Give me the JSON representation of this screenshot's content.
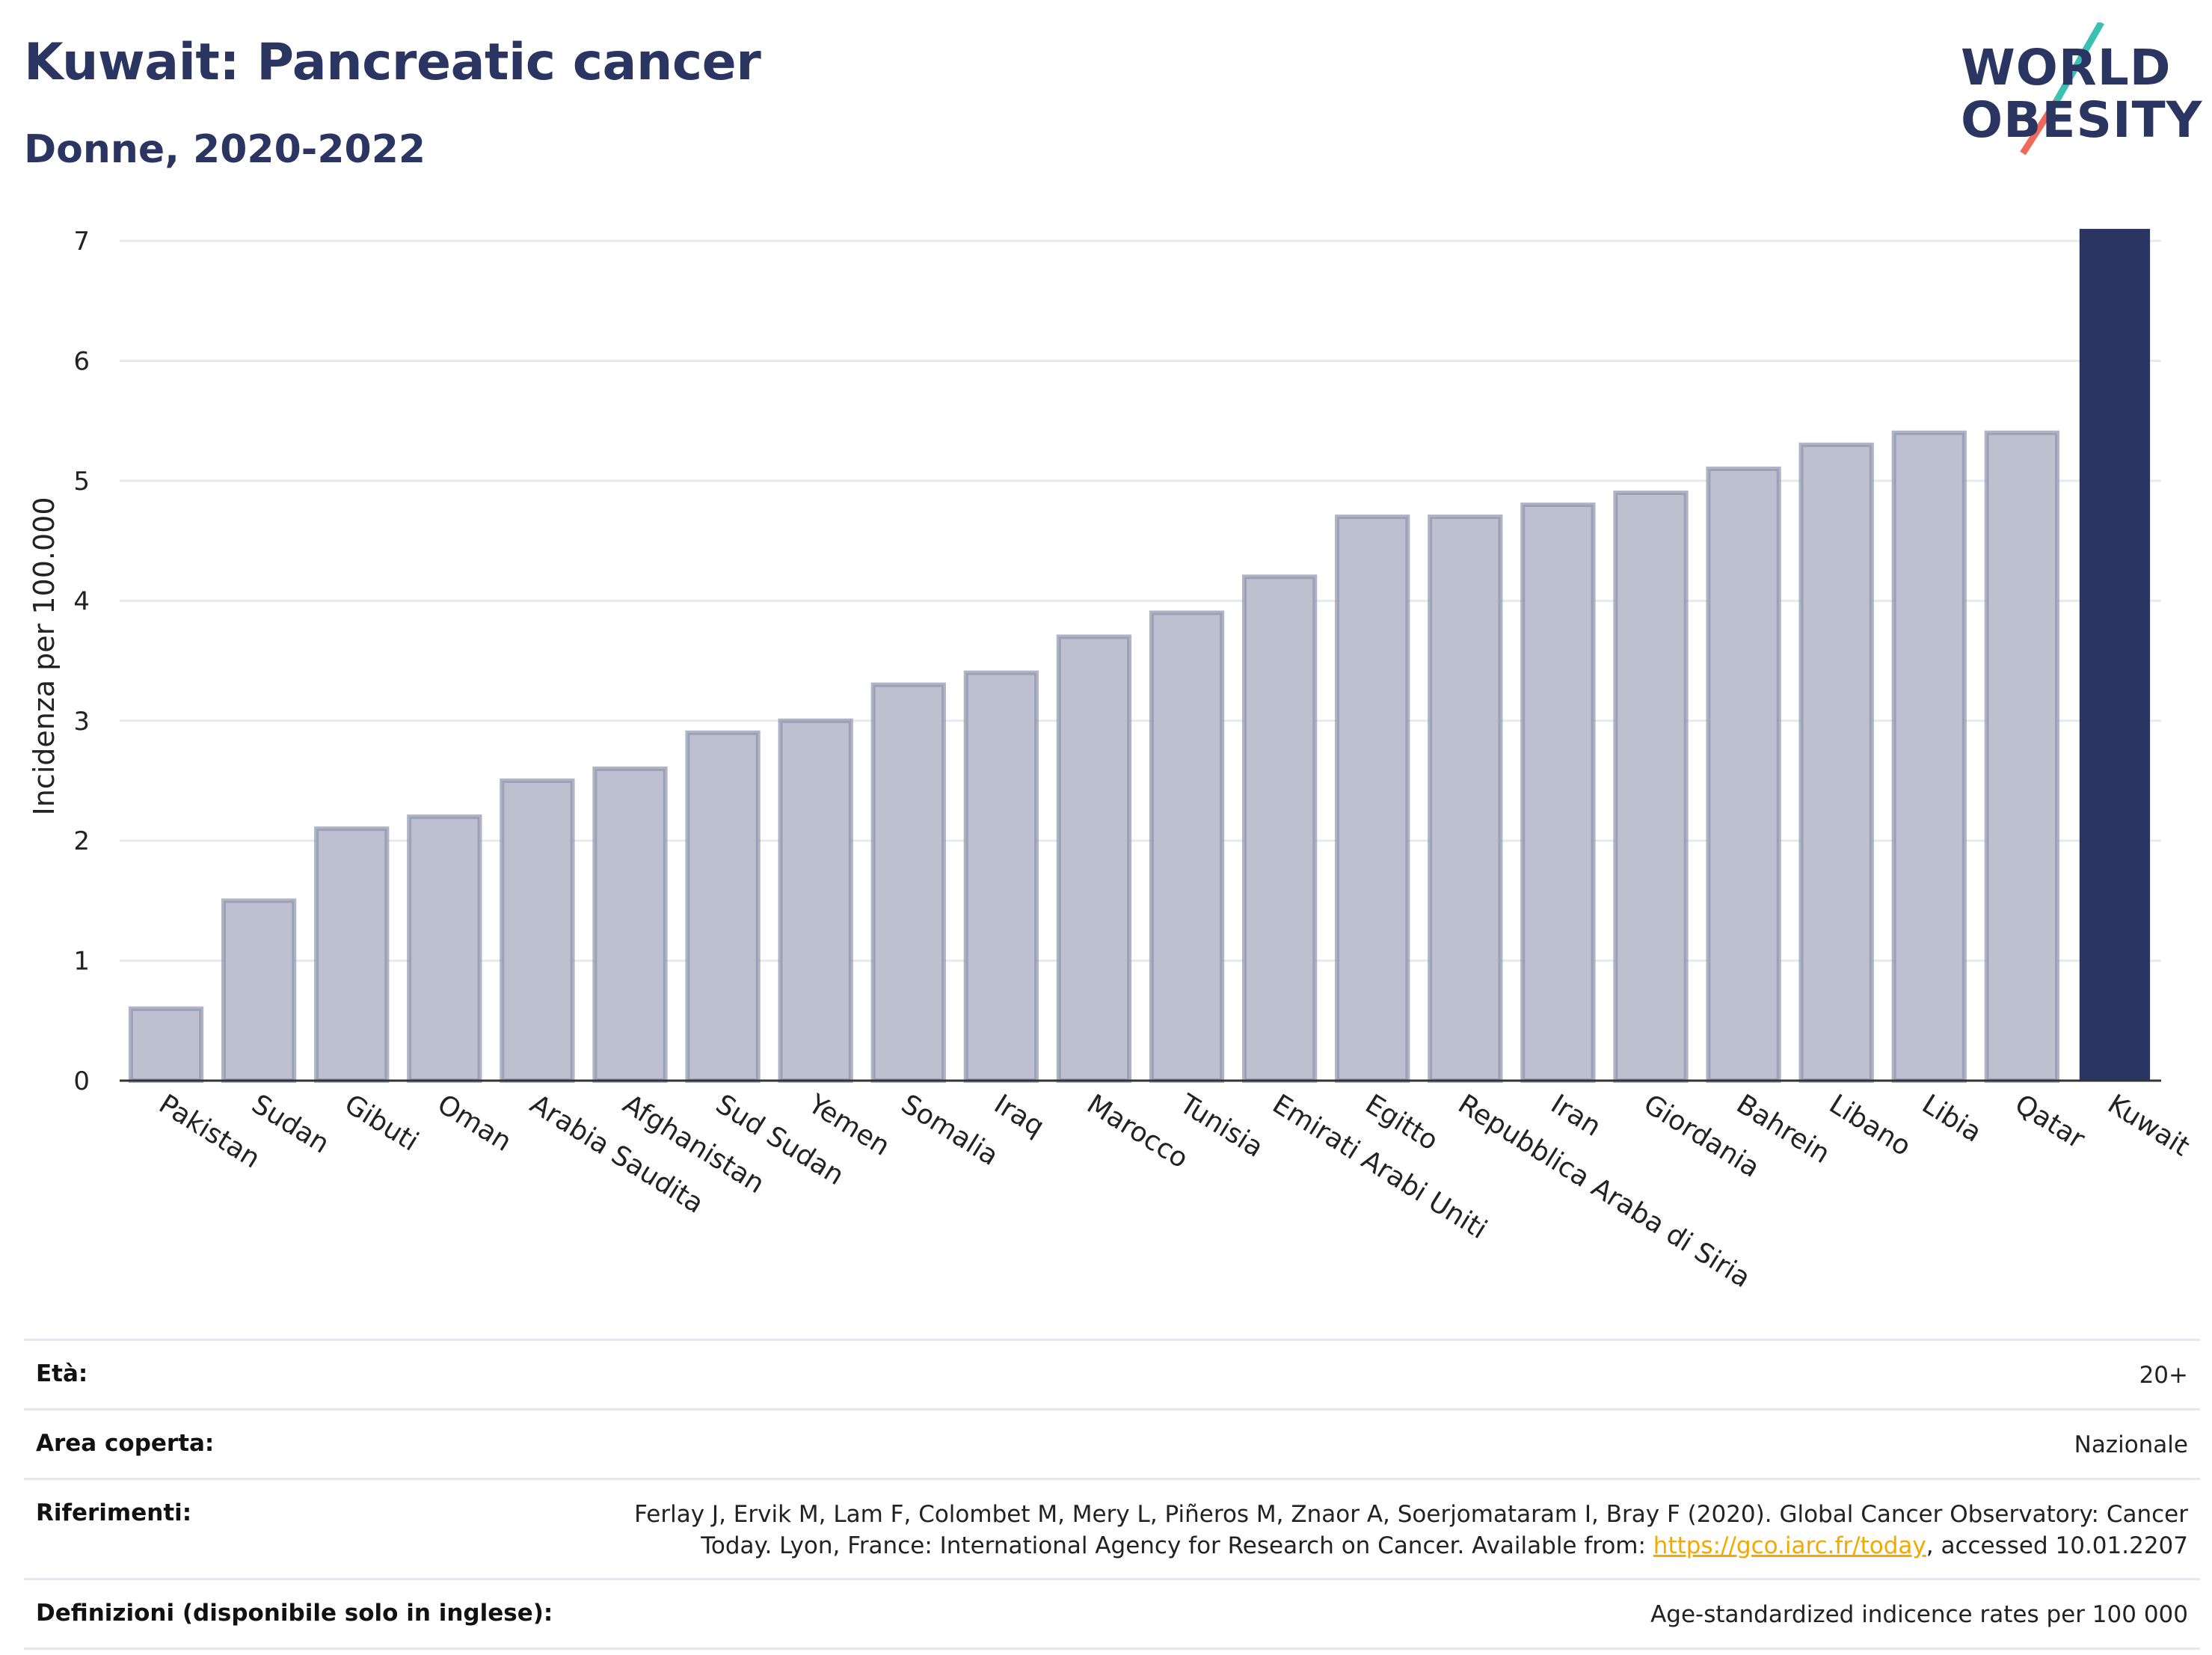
{
  "header": {
    "title": "Kuwait: Pancreatic cancer",
    "subtitle": "Donne, 2020-2022",
    "logo_line1": "WORLD",
    "logo_line2": "OBESITY"
  },
  "chart_data": {
    "type": "bar",
    "title": "Kuwait: Pancreatic cancer",
    "subtitle": "Donne, 2020-2022",
    "xlabel": "",
    "ylabel": "Incidenza per 100.000",
    "ylim": [
      0,
      7.2
    ],
    "yticks": [
      0,
      1,
      2,
      3,
      4,
      5,
      6,
      7
    ],
    "grid": true,
    "categories": [
      "Pakistan",
      "Sudan",
      "Gibuti",
      "Oman",
      "Arabia Saudita",
      "Afghanistan",
      "Sud Sudan",
      "Yemen",
      "Somalia",
      "Iraq",
      "Marocco",
      "Tunisia",
      "Emirati Arabi Uniti",
      "Egitto",
      "Repubblica Araba di Siria",
      "Iran",
      "Giordania",
      "Bahrein",
      "Libano",
      "Libia",
      "Qatar",
      "Kuwait"
    ],
    "values": [
      0.6,
      1.5,
      2.1,
      2.2,
      2.5,
      2.6,
      2.9,
      3.0,
      3.3,
      3.4,
      3.7,
      3.9,
      4.2,
      4.7,
      4.7,
      4.8,
      4.9,
      5.1,
      5.3,
      5.4,
      5.4,
      7.1
    ],
    "highlight": "Kuwait",
    "colors": {
      "bar": "#bcc0cf",
      "bar_stroke": "#8e94ad",
      "highlight": "#2b3562"
    }
  },
  "footer": {
    "rows": [
      {
        "label": "Età:",
        "value": "20+"
      },
      {
        "label": "Area coperta:",
        "value": "Nazionale"
      },
      {
        "label": "Riferimenti:",
        "value": "Ferlay J, Ervik M, Lam F, Colombet M, Mery L, Piñeros M, Znaor A, Soerjomataram I, Bray F (2020). Global Cancer Observatory: Cancer Today. Lyon, France: International Agency for Research on Cancer. Available from: ",
        "link": "https://gco.iarc.fr/today",
        "after": ", accessed 10.01.2207"
      },
      {
        "label": "Definizioni (disponibile solo in inglese):",
        "value": "Age-standardized indicence rates per 100 000"
      }
    ]
  }
}
